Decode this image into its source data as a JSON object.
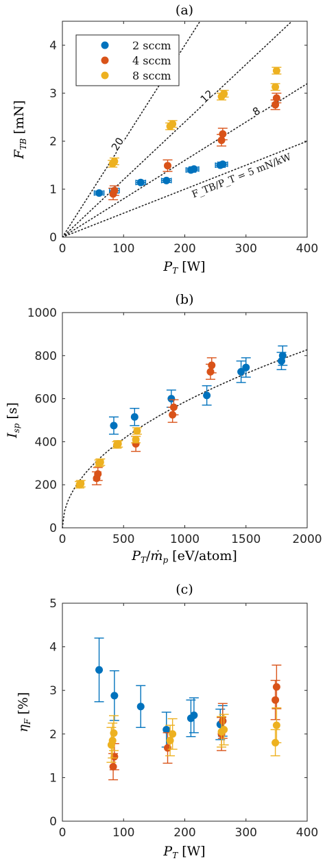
{
  "chart_data": [
    {
      "panel": "(a)",
      "type": "scatter",
      "xlabel": "P_T [W]",
      "ylabel": "F_TB [mN]",
      "xlim": [
        0,
        400
      ],
      "ylim": [
        0,
        4.5
      ],
      "xticks": [
        "0",
        "100",
        "200",
        "300",
        "400"
      ],
      "yticks": [
        "0",
        "1",
        "2",
        "3",
        "4"
      ],
      "grid": false,
      "legend": {
        "placement": "top-left",
        "entries": [
          "2 sccm",
          "4 sccm",
          "8 sccm"
        ]
      },
      "reference_lines": [
        {
          "label": "20",
          "slope_mN_per_kW": 20
        },
        {
          "label": "12",
          "slope_mN_per_kW": 12
        },
        {
          "label": "8",
          "slope_mN_per_kW": 8
        },
        {
          "label": "F_TB/P_T = 5 mN/kW",
          "slope_mN_per_kW": 5
        }
      ],
      "series": [
        {
          "name": "2 sccm",
          "color": "#0072BD",
          "points": [
            {
              "x": 60,
              "y": 0.92,
              "err": 0.04,
              "xerr": 8
            },
            {
              "x": 85,
              "y": 0.97,
              "err": 0.05,
              "xerr": 8
            },
            {
              "x": 128,
              "y": 1.14,
              "err": 0.04,
              "xerr": 8
            },
            {
              "x": 170,
              "y": 1.18,
              "err": 0.04,
              "xerr": 8
            },
            {
              "x": 210,
              "y": 1.4,
              "err": 0.04,
              "xerr": 8
            },
            {
              "x": 215,
              "y": 1.42,
              "err": 0.04,
              "xerr": 8
            },
            {
              "x": 258,
              "y": 1.5,
              "err": 0.04,
              "xerr": 8
            },
            {
              "x": 262,
              "y": 1.52,
              "err": 0.04,
              "xerr": 8
            }
          ]
        },
        {
          "name": "4 sccm",
          "color": "#D95319",
          "points": [
            {
              "x": 83,
              "y": 0.9,
              "err": 0.12
            },
            {
              "x": 85,
              "y": 0.97,
              "err": 0.1
            },
            {
              "x": 172,
              "y": 1.49,
              "err": 0.12
            },
            {
              "x": 260,
              "y": 2.02,
              "err": 0.12
            },
            {
              "x": 262,
              "y": 2.15,
              "err": 0.12
            },
            {
              "x": 348,
              "y": 2.76,
              "err": 0.1
            },
            {
              "x": 350,
              "y": 2.9,
              "err": 0.1
            }
          ]
        },
        {
          "name": "8 sccm",
          "color": "#EDB120",
          "points": [
            {
              "x": 82,
              "y": 1.53,
              "err": 0.07
            },
            {
              "x": 85,
              "y": 1.58,
              "err": 0.07
            },
            {
              "x": 176,
              "y": 2.31,
              "err": 0.07
            },
            {
              "x": 180,
              "y": 2.36,
              "err": 0.07
            },
            {
              "x": 260,
              "y": 2.93,
              "err": 0.07
            },
            {
              "x": 264,
              "y": 2.99,
              "err": 0.07
            },
            {
              "x": 348,
              "y": 3.13,
              "err": 0.07
            },
            {
              "x": 350,
              "y": 3.47,
              "err": 0.07
            }
          ]
        }
      ]
    },
    {
      "panel": "(b)",
      "type": "scatter",
      "xlabel": "P_T/ṁ_p [eV/atom]",
      "ylabel": "I_sp [s]",
      "xlim": [
        0,
        2000
      ],
      "ylim": [
        0,
        1000
      ],
      "xticks": [
        "0",
        "500",
        "1000",
        "1500",
        "2000"
      ],
      "yticks": [
        "0",
        "200",
        "400",
        "600",
        "800",
        "1000"
      ],
      "grid": false,
      "fit_curve": {
        "style": "dotted",
        "form": "sqrt",
        "k": 18.5
      },
      "series": [
        {
          "name": "2 sccm",
          "color": "#0072BD",
          "points": [
            {
              "x": 420,
              "y": 475,
              "err": 40
            },
            {
              "x": 590,
              "y": 515,
              "err": 40
            },
            {
              "x": 890,
              "y": 600,
              "err": 40
            },
            {
              "x": 1180,
              "y": 615,
              "err": 45
            },
            {
              "x": 1460,
              "y": 725,
              "err": 50
            },
            {
              "x": 1500,
              "y": 745,
              "err": 45
            },
            {
              "x": 1790,
              "y": 775,
              "err": 40
            },
            {
              "x": 1800,
              "y": 800,
              "err": 45
            }
          ]
        },
        {
          "name": "4 sccm",
          "color": "#D95319",
          "points": [
            {
              "x": 280,
              "y": 230,
              "err": 30
            },
            {
              "x": 290,
              "y": 250,
              "err": 30
            },
            {
              "x": 600,
              "y": 390,
              "err": 35
            },
            {
              "x": 900,
              "y": 525,
              "err": 35
            },
            {
              "x": 910,
              "y": 560,
              "err": 35
            },
            {
              "x": 1210,
              "y": 725,
              "err": 35
            },
            {
              "x": 1220,
              "y": 755,
              "err": 35
            }
          ]
        },
        {
          "name": "8 sccm",
          "color": "#EDB120",
          "points": [
            {
              "x": 140,
              "y": 200,
              "err": 15
            },
            {
              "x": 150,
              "y": 205,
              "err": 15
            },
            {
              "x": 300,
              "y": 300,
              "err": 15
            },
            {
              "x": 310,
              "y": 305,
              "err": 15
            },
            {
              "x": 445,
              "y": 385,
              "err": 15
            },
            {
              "x": 455,
              "y": 390,
              "err": 15
            },
            {
              "x": 600,
              "y": 410,
              "err": 15
            },
            {
              "x": 610,
              "y": 450,
              "err": 15
            }
          ]
        }
      ]
    },
    {
      "panel": "(c)",
      "type": "scatter",
      "xlabel": "P_T [W]",
      "ylabel": "η_F [%]",
      "xlim": [
        0,
        400
      ],
      "ylim": [
        0,
        5
      ],
      "xticks": [
        "0",
        "100",
        "200",
        "300",
        "400"
      ],
      "yticks": [
        "0",
        "1",
        "2",
        "3",
        "4",
        "5"
      ],
      "grid": false,
      "series": [
        {
          "name": "2 sccm",
          "color": "#0072BD",
          "points": [
            {
              "x": 60,
              "y": 3.47,
              "err": 0.73
            },
            {
              "x": 85,
              "y": 2.88,
              "err": 0.57
            },
            {
              "x": 128,
              "y": 2.63,
              "err": 0.48
            },
            {
              "x": 170,
              "y": 2.1,
              "err": 0.4
            },
            {
              "x": 210,
              "y": 2.36,
              "err": 0.42
            },
            {
              "x": 215,
              "y": 2.43,
              "err": 0.4
            },
            {
              "x": 258,
              "y": 2.22,
              "err": 0.35
            },
            {
              "x": 262,
              "y": 2.3,
              "err": 0.35
            }
          ]
        },
        {
          "name": "4 sccm",
          "color": "#D95319",
          "points": [
            {
              "x": 83,
              "y": 1.25,
              "err": 0.3
            },
            {
              "x": 85,
              "y": 1.48,
              "err": 0.3
            },
            {
              "x": 172,
              "y": 1.68,
              "err": 0.35
            },
            {
              "x": 260,
              "y": 2.0,
              "err": 0.38
            },
            {
              "x": 262,
              "y": 2.3,
              "err": 0.4
            },
            {
              "x": 348,
              "y": 2.78,
              "err": 0.45
            },
            {
              "x": 350,
              "y": 3.08,
              "err": 0.5
            }
          ]
        },
        {
          "name": "8 sccm",
          "color": "#EDB120",
          "points": [
            {
              "x": 80,
              "y": 1.75,
              "err": 0.4
            },
            {
              "x": 82,
              "y": 1.85,
              "err": 0.4
            },
            {
              "x": 84,
              "y": 2.02,
              "err": 0.4
            },
            {
              "x": 176,
              "y": 1.85,
              "err": 0.35
            },
            {
              "x": 180,
              "y": 2.0,
              "err": 0.35
            },
            {
              "x": 260,
              "y": 2.05,
              "err": 0.35
            },
            {
              "x": 264,
              "y": 2.1,
              "err": 0.35
            },
            {
              "x": 348,
              "y": 1.8,
              "err": 0.3
            },
            {
              "x": 350,
              "y": 2.2,
              "err": 0.4
            }
          ]
        }
      ]
    }
  ]
}
